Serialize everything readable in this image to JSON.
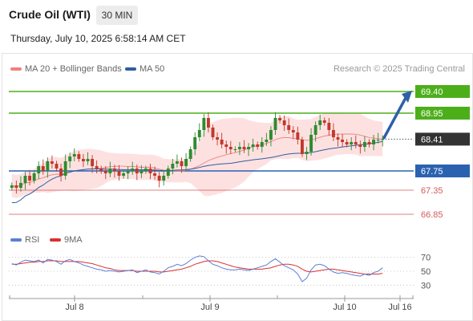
{
  "header": {
    "title": "Crude Oil (WTI)",
    "timeframe": "30 MIN",
    "datetime": "Thursday, July 10, 2025 6:58:14 AM CET"
  },
  "legend": {
    "ma20": "MA 20 + Bollinger Bands",
    "ma50": "MA 50",
    "credit": "Research © 2025 Trading Central",
    "rsi": "RSI",
    "rsi_ma": "9MA"
  },
  "colors": {
    "ma20": "#f08080",
    "bollinger_fill": "#fde1e1",
    "ma50": "#2e5e9e",
    "bull_candle": "#2e8b2e",
    "bear_candle": "#c0392b",
    "green_level": "#4caf1a",
    "blue_level": "#2a62b0",
    "red_level": "#d35a5a",
    "rsi": "#5b7fd6",
    "rsi_ma": "#d93030",
    "current_price": "#333333",
    "arrow": "#2f5fa8"
  },
  "chart_data": [
    {
      "type": "candlestick",
      "name": "price",
      "x_labels": [
        "Jul 8",
        "Jul 9",
        "Jul 10",
        "Jul 16"
      ],
      "ylim": [
        66.5,
        69.7
      ],
      "current_price": 68.41,
      "levels": [
        {
          "value": 69.4,
          "label": "69.40",
          "kind": "resistance"
        },
        {
          "value": 68.95,
          "label": "68.95",
          "kind": "resistance"
        },
        {
          "value": 67.75,
          "label": "67.75",
          "kind": "pivot"
        },
        {
          "value": 67.35,
          "label": "67.35",
          "kind": "support"
        },
        {
          "value": 66.85,
          "label": "66.85",
          "kind": "support"
        }
      ],
      "current_label": "68.41",
      "closes": [
        67.45,
        67.4,
        67.5,
        67.65,
        67.55,
        67.7,
        67.85,
        67.75,
        67.95,
        67.9,
        67.8,
        67.65,
        67.95,
        68.05,
        68.1,
        68.0,
        67.95,
        68.0,
        67.85,
        67.8,
        67.75,
        67.7,
        67.8,
        67.75,
        67.65,
        67.7,
        67.75,
        67.8,
        67.7,
        67.75,
        67.8,
        67.7,
        67.65,
        67.55,
        67.65,
        67.8,
        67.9,
        67.95,
        67.85,
        68.0,
        68.2,
        68.45,
        68.6,
        68.85,
        68.65,
        68.45,
        68.4,
        68.3,
        68.25,
        68.2,
        68.2,
        68.25,
        68.2,
        68.25,
        68.3,
        68.25,
        68.35,
        68.4,
        68.6,
        68.85,
        68.8,
        68.7,
        68.6,
        68.55,
        68.4,
        68.1,
        68.15,
        68.5,
        68.7,
        68.8,
        68.75,
        68.6,
        68.45,
        68.4,
        68.35,
        68.3,
        68.35,
        68.3,
        68.25,
        68.35,
        68.3,
        68.4,
        68.4,
        68.41
      ],
      "x_domain": [
        0,
        120
      ]
    },
    {
      "type": "line",
      "name": "rsi",
      "ylim": [
        20,
        80
      ],
      "ticks": [
        70,
        50,
        30
      ],
      "tick_labels": [
        "70",
        "50",
        "30"
      ],
      "series": [
        {
          "name": "RSI",
          "values": [
            61,
            59,
            63,
            66,
            65,
            64,
            66,
            62,
            67,
            66,
            64,
            60,
            65,
            67,
            64,
            62,
            59,
            57,
            55,
            53,
            52,
            50,
            51,
            50,
            49,
            50,
            51,
            52,
            48,
            50,
            52,
            49,
            48,
            46,
            50,
            55,
            57,
            60,
            58,
            61,
            66,
            70,
            72,
            71,
            65,
            60,
            58,
            55,
            53,
            52,
            52,
            53,
            52,
            51,
            53,
            55,
            57,
            59,
            64,
            68,
            63,
            58,
            55,
            52,
            46,
            35,
            40,
            52,
            59,
            60,
            58,
            53,
            49,
            47,
            48,
            47,
            45,
            44,
            43,
            46,
            44,
            48,
            50,
            55
          ]
        },
        {
          "name": "9MA",
          "values": [
            60,
            60,
            61,
            62,
            63,
            63,
            64,
            64,
            65,
            65,
            65,
            64,
            64,
            64,
            64,
            64,
            63,
            62,
            61,
            59,
            57,
            55,
            54,
            52,
            51,
            51,
            51,
            51,
            50,
            50,
            50,
            50,
            50,
            49,
            49,
            50,
            51,
            52,
            53,
            55,
            57,
            60,
            62,
            64,
            65,
            65,
            64,
            62,
            60,
            58,
            56,
            55,
            54,
            53,
            53,
            53,
            53,
            54,
            55,
            57,
            59,
            60,
            60,
            59,
            57,
            53,
            50,
            49,
            50,
            51,
            52,
            53,
            53,
            52,
            51,
            50,
            49,
            48,
            47,
            46,
            46,
            46,
            46,
            47
          ]
        }
      ]
    }
  ]
}
